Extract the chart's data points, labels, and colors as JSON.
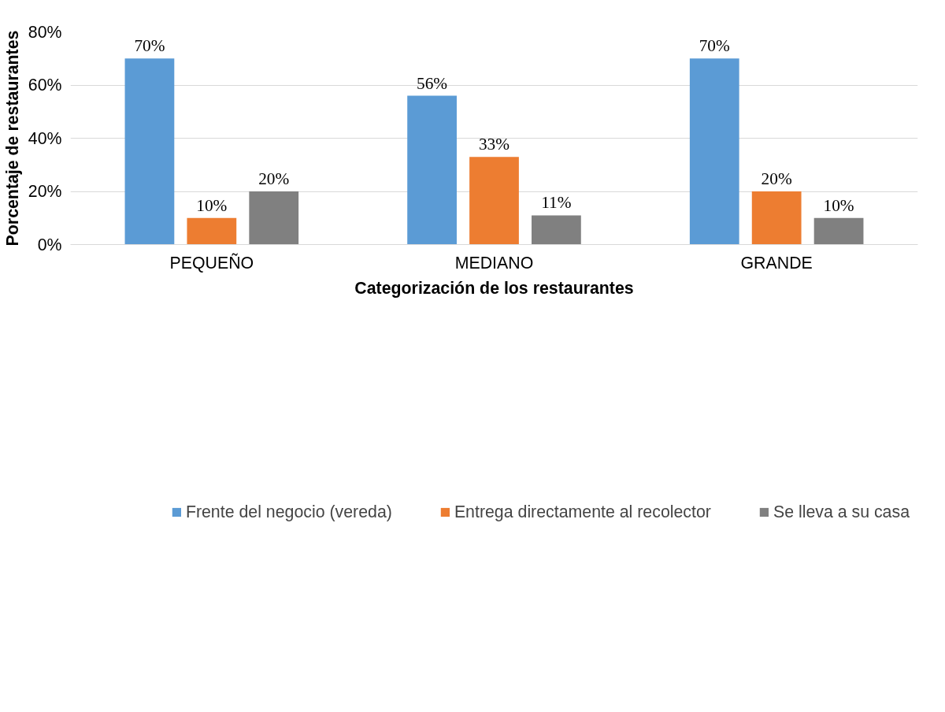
{
  "chart_data": {
    "type": "bar",
    "xlabel": "Categorización de los restaurantes",
    "ylabel": "Porcentaje de restaurantes",
    "categories": [
      "PEQUEÑO",
      "MEDIANO",
      "GRANDE"
    ],
    "series": [
      {
        "name": "Frente del negocio (vereda)",
        "color": "#5b9bd5",
        "values": [
          70,
          56,
          70
        ],
        "value_labels": [
          "70%",
          "56%",
          "70%"
        ]
      },
      {
        "name": "Entrega directamente al recolector",
        "color": "#ed7d31",
        "values": [
          10,
          33,
          20
        ],
        "value_labels": [
          "10%",
          "33%",
          "20%"
        ]
      },
      {
        "name": "Se lleva a su casa",
        "color": "#808080",
        "values": [
          20,
          11,
          10
        ],
        "value_labels": [
          "20%",
          "11%",
          "10%"
        ]
      }
    ],
    "ylim": [
      0,
      80
    ],
    "yticks": [
      {
        "value": 0,
        "label": "0%"
      },
      {
        "value": 20,
        "label": "20%"
      },
      {
        "value": 40,
        "label": "40%"
      },
      {
        "value": 60,
        "label": "60%"
      },
      {
        "value": 80,
        "label": "80%"
      }
    ],
    "grid": "y",
    "legend": "bottom"
  }
}
